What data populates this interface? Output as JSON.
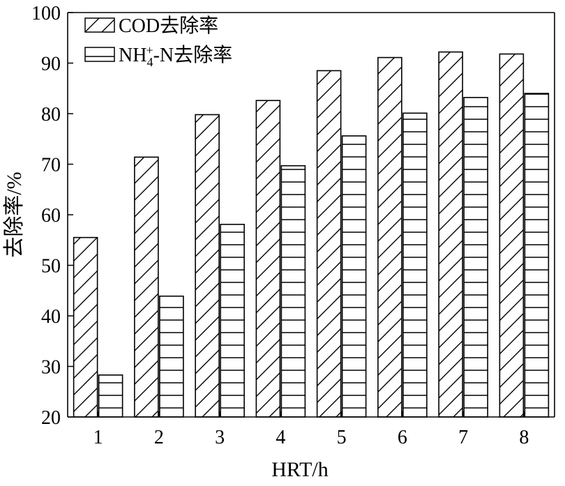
{
  "chart_data": {
    "type": "bar",
    "categories": [
      "1",
      "2",
      "3",
      "4",
      "5",
      "6",
      "7",
      "8"
    ],
    "series": [
      {
        "name": "COD去除率",
        "pattern": "diagonal-hatch",
        "values": [
          55.5,
          71.4,
          79.8,
          82.6,
          88.5,
          91.1,
          92.2,
          91.8
        ]
      },
      {
        "name": "NH4+-N去除率",
        "pattern": "horizontal-hatch",
        "values": [
          28.3,
          43.9,
          58.1,
          69.7,
          75.6,
          80.1,
          83.2,
          84.0
        ]
      }
    ],
    "xlabel": "HRT/h",
    "ylabel": "去除率/%",
    "ylim": [
      20,
      100
    ],
    "yticks": [
      "20",
      "30",
      "40",
      "50",
      "60",
      "70",
      "80",
      "90",
      "100"
    ],
    "grid": false,
    "legend_position": "top-left"
  }
}
